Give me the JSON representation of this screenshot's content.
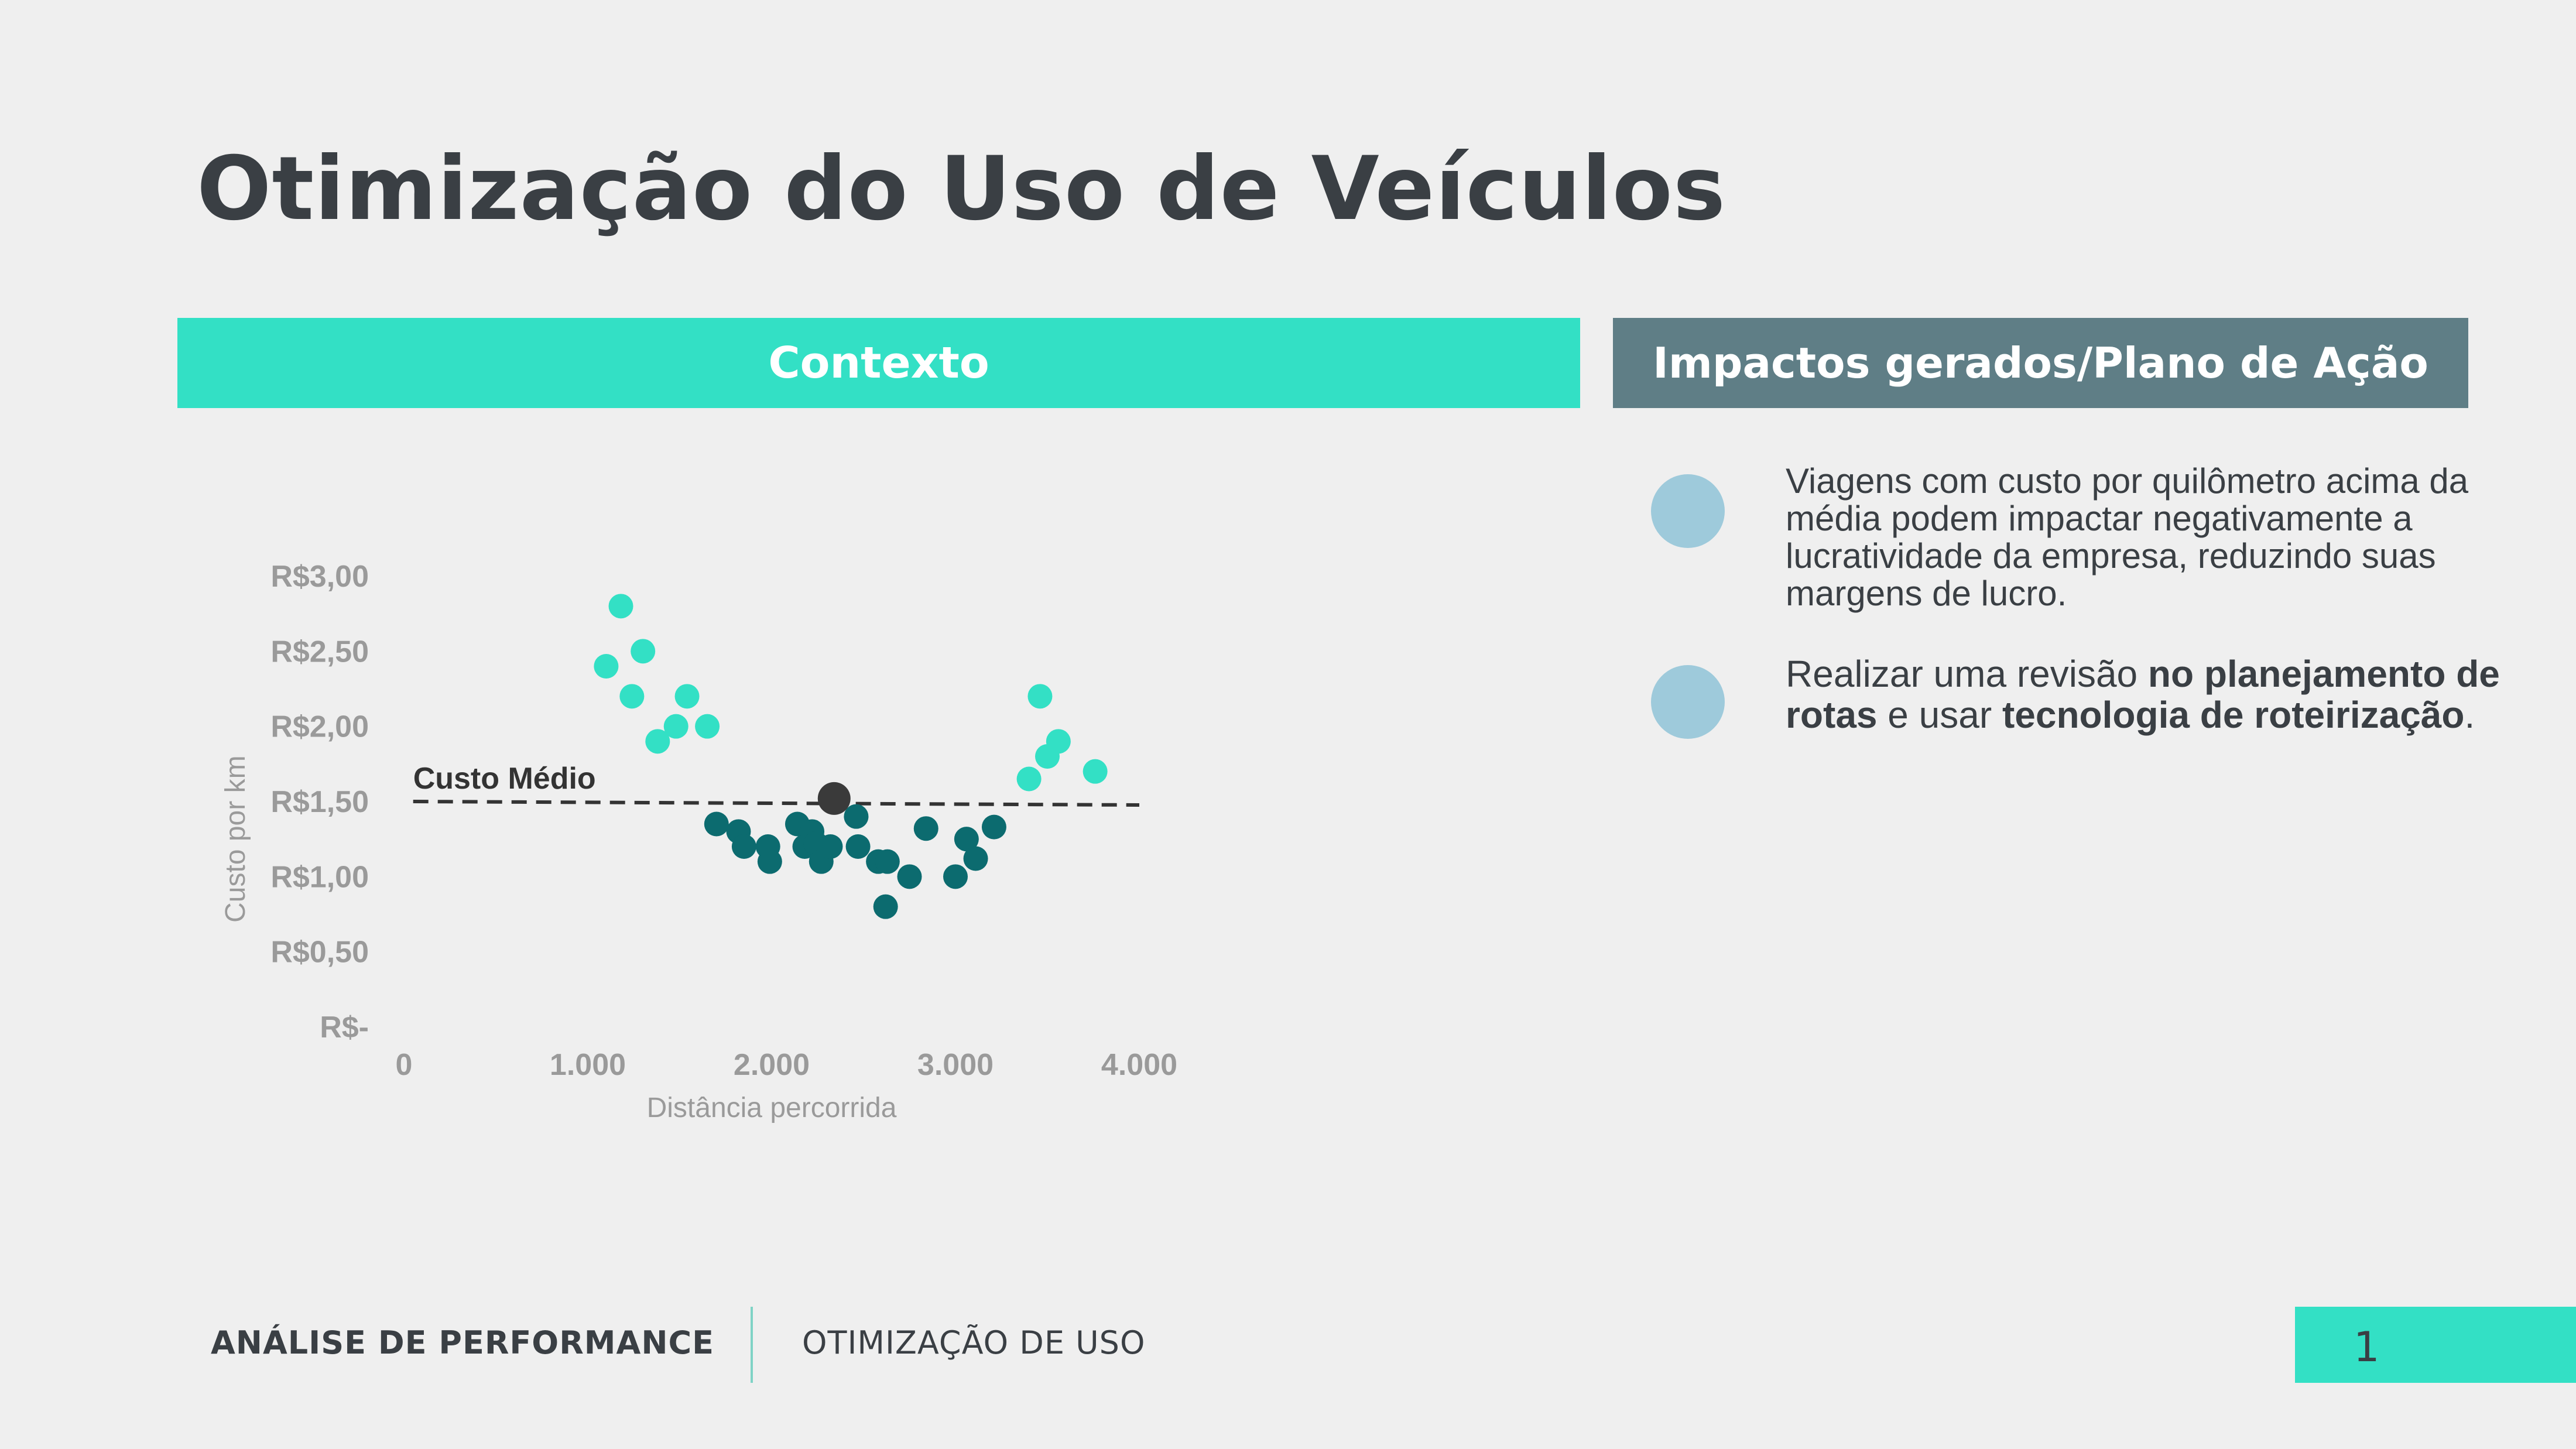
{
  "title": "Otimização do Uso de Veículos",
  "banners": {
    "context": "Contexto",
    "impacts": "Impactos gerados/Plano de Ação"
  },
  "bullets": {
    "first": "Viagens com custo por quilômetro acima da média podem impactar negativamente a lucratividade da empresa, reduzindo suas margens de lucro.",
    "second_parts": {
      "p1": "Realizar uma revisão ",
      "b1": "no planejamento de rotas",
      "p2": " e usar ",
      "b2": "tecnologia de roteirização",
      "p3": "."
    }
  },
  "footer": {
    "left": "ANÁLISE DE PERFORMANCE",
    "right": "OTIMIZAÇÃO DE USO",
    "page": "1"
  },
  "colors": {
    "above_average": "#33e0c5",
    "below_average": "#0c6b6f",
    "average_point": "#3a3a3a",
    "bullet_dot": "#9ecadb",
    "context_banner": "#33e0c5",
    "impacts_banner": "#5f7e86"
  },
  "chart_data": {
    "type": "scatter",
    "xlabel": "Distância percorrida",
    "ylabel": "Custo por km",
    "xlim": [
      0,
      4000
    ],
    "ylim": [
      0,
      3
    ],
    "x_ticks": [
      {
        "value": 0,
        "label": "0"
      },
      {
        "value": 1000,
        "label": "1.000"
      },
      {
        "value": 2000,
        "label": "2.000"
      },
      {
        "value": 3000,
        "label": "3.000"
      },
      {
        "value": 4000,
        "label": "4.000"
      }
    ],
    "y_ticks": [
      {
        "value": 0,
        "label": "R$-"
      },
      {
        "value": 0.5,
        "label": "R$0,50"
      },
      {
        "value": 1.0,
        "label": "R$1,00"
      },
      {
        "value": 1.5,
        "label": "R$1,50"
      },
      {
        "value": 2.0,
        "label": "R$2,00"
      },
      {
        "value": 2.5,
        "label": "R$2,50"
      },
      {
        "value": 3.0,
        "label": "R$3,00"
      }
    ],
    "grid": false,
    "average_line": {
      "label": "Custo Médio",
      "value": 1.5,
      "x_from": 50,
      "x_to": 4000
    },
    "average_point": {
      "x": 2340,
      "y": 1.52
    },
    "series": [
      {
        "points": [
          [
            1100,
            2.4
          ],
          [
            1180,
            2.8
          ],
          [
            1240,
            2.2
          ],
          [
            1300,
            2.5
          ],
          [
            1380,
            1.9
          ],
          [
            1480,
            2.0
          ],
          [
            1540,
            2.2
          ],
          [
            1650,
            2.0
          ],
          [
            3400,
            1.65
          ],
          [
            3460,
            2.2
          ],
          [
            3500,
            1.8
          ],
          [
            3560,
            1.9
          ],
          [
            3760,
            1.7
          ]
        ]
      },
      {
        "points": [
          [
            1700,
            1.35
          ],
          [
            1820,
            1.3
          ],
          [
            1850,
            1.2
          ],
          [
            1980,
            1.2
          ],
          [
            1990,
            1.1
          ],
          [
            2140,
            1.35
          ],
          [
            2180,
            1.2
          ],
          [
            2220,
            1.3
          ],
          [
            2240,
            1.22
          ],
          [
            2270,
            1.1
          ],
          [
            2320,
            1.2
          ],
          [
            2460,
            1.4
          ],
          [
            2470,
            1.2
          ],
          [
            2580,
            1.1
          ],
          [
            2630,
            1.1
          ],
          [
            2620,
            0.8
          ],
          [
            2750,
            1.0
          ],
          [
            2840,
            1.32
          ],
          [
            3000,
            1.0
          ],
          [
            3060,
            1.25
          ],
          [
            3110,
            1.12
          ],
          [
            3210,
            1.33
          ]
        ]
      }
    ]
  }
}
